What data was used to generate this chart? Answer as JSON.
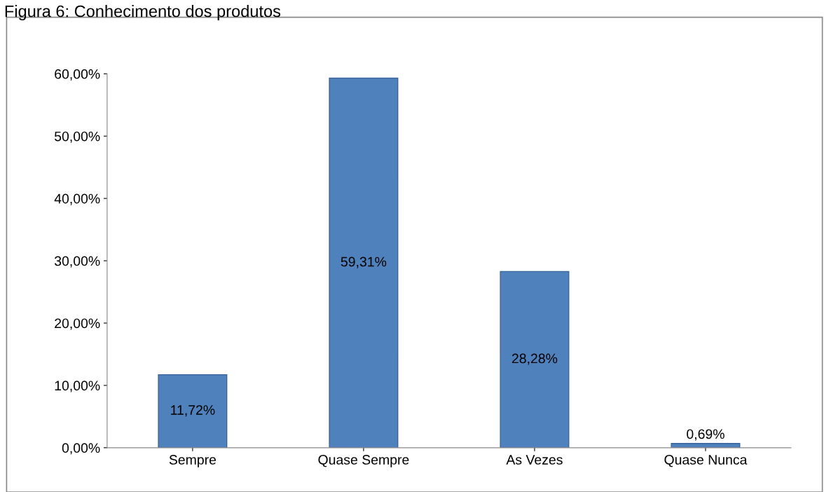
{
  "chart_data": {
    "type": "bar",
    "title": "Figura 6: Conhecimento dos produtos",
    "categories": [
      "Sempre",
      "Quase Sempre",
      "As Vezes",
      "Quase Nunca"
    ],
    "values": [
      11.72,
      59.31,
      28.28,
      0.69
    ],
    "color": "#4f81bd",
    "value_labels": [
      "11,72%",
      "59,31%",
      "28,28%",
      "0,69%"
    ],
    "ylim": [
      0,
      60
    ],
    "yticks": [
      {
        "value": 0,
        "label": "0,00%"
      },
      {
        "value": 10,
        "label": "10,00%"
      },
      {
        "value": 20,
        "label": "20,00%"
      },
      {
        "value": 30,
        "label": "30,00%"
      },
      {
        "value": 40,
        "label": "40,00%"
      },
      {
        "value": 50,
        "label": "50,00%"
      },
      {
        "value": 60,
        "label": "60,00%"
      }
    ],
    "grid": false
  }
}
